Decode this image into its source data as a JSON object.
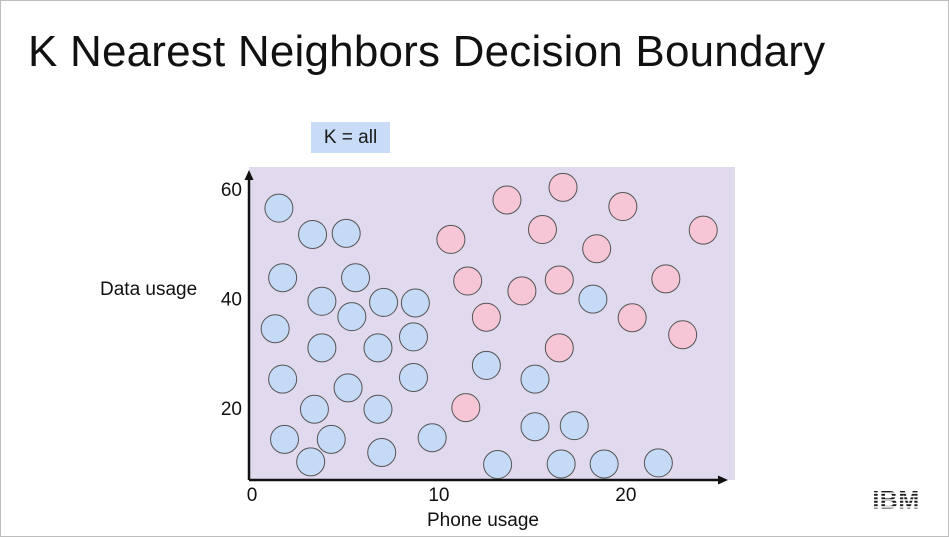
{
  "slide": {
    "title": "K Nearest Neighbors Decision Boundary",
    "k_badge": "K = all",
    "logo": "IBM"
  },
  "colors": {
    "region": "#e1d9ee",
    "blue_fill": "#c5daf6",
    "pink_fill": "#f7c6d6",
    "point_stroke": "#555555",
    "axis": "#111111"
  },
  "chart_data": {
    "type": "scatter",
    "xlabel": "Phone usage",
    "ylabel": "Data usage",
    "xlim": [
      0,
      26
    ],
    "ylim": [
      3,
      66
    ],
    "xticks": [
      0,
      10,
      20
    ],
    "yticks": [
      20,
      40,
      60
    ],
    "background_region": "entire plot area shaded purple",
    "series": [
      {
        "class": "blue",
        "points": [
          [
            1.6,
            56.5
          ],
          [
            3.4,
            51.7
          ],
          [
            5.2,
            51.9
          ],
          [
            1.8,
            43.8
          ],
          [
            5.7,
            43.8
          ],
          [
            3.9,
            39.5
          ],
          [
            5.5,
            36.7
          ],
          [
            7.2,
            39.3
          ],
          [
            8.9,
            39.2
          ],
          [
            1.4,
            34.5
          ],
          [
            3.9,
            31.0
          ],
          [
            6.9,
            31.0
          ],
          [
            8.8,
            33.0
          ],
          [
            1.8,
            25.3
          ],
          [
            5.3,
            23.7
          ],
          [
            3.5,
            19.8
          ],
          [
            6.9,
            19.8
          ],
          [
            8.8,
            25.6
          ],
          [
            1.9,
            14.3
          ],
          [
            4.4,
            14.3
          ],
          [
            3.3,
            10.2
          ],
          [
            7.1,
            11.9
          ],
          [
            9.8,
            14.6
          ],
          [
            12.7,
            27.8
          ],
          [
            15.3,
            25.3
          ],
          [
            15.3,
            16.6
          ],
          [
            17.4,
            16.8
          ],
          [
            13.3,
            9.7
          ],
          [
            16.7,
            9.8
          ],
          [
            19.0,
            9.8
          ],
          [
            18.4,
            39.9
          ],
          [
            21.9,
            10.0
          ]
        ]
      },
      {
        "class": "pink",
        "points": [
          [
            13.8,
            58.0
          ],
          [
            16.8,
            60.3
          ],
          [
            20.0,
            56.8
          ],
          [
            24.3,
            52.5
          ],
          [
            10.8,
            50.8
          ],
          [
            15.7,
            52.6
          ],
          [
            18.6,
            49.1
          ],
          [
            11.7,
            43.2
          ],
          [
            14.6,
            41.4
          ],
          [
            16.6,
            43.4
          ],
          [
            22.3,
            43.6
          ],
          [
            12.7,
            36.6
          ],
          [
            20.5,
            36.5
          ],
          [
            23.2,
            33.4
          ],
          [
            16.6,
            31.0
          ],
          [
            11.6,
            20.1
          ]
        ]
      }
    ]
  }
}
